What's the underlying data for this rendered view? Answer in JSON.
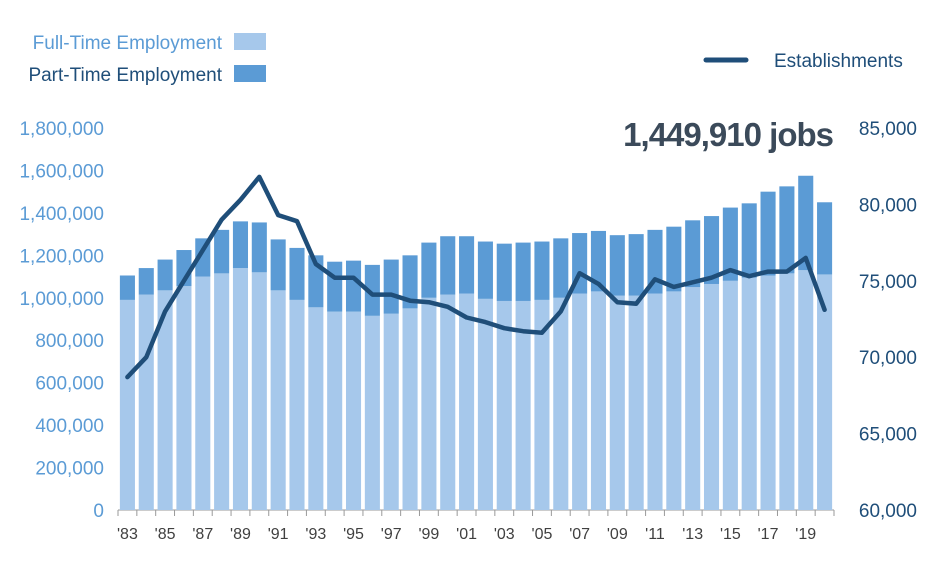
{
  "chart_data": {
    "type": "bar",
    "stacked": true,
    "title": "",
    "annotation": "1,449,910 jobs",
    "x_tick_labels": [
      "'83",
      "'85",
      "'87",
      "'89",
      "'91",
      "'93",
      "'95",
      "'97",
      "'99",
      "'01",
      "'03",
      "'05",
      "'07",
      "'09",
      "'11",
      "'13",
      "'15",
      "'17",
      "'19"
    ],
    "categories": [
      "1983",
      "1984",
      "1985",
      "1986",
      "1987",
      "1988",
      "1989",
      "1990",
      "1991",
      "1992",
      "1993",
      "1994",
      "1995",
      "1996",
      "1997",
      "1998",
      "1999",
      "2000",
      "2001",
      "2002",
      "2003",
      "2004",
      "2005",
      "2006",
      "2007",
      "2008",
      "2009",
      "2010",
      "2011",
      "2012",
      "2013",
      "2014",
      "2015",
      "2016",
      "2017",
      "2018",
      "2019",
      "2020"
    ],
    "y_left": {
      "min": 0,
      "max": 1800000,
      "ticks": [
        "0",
        "200,000",
        "400,000",
        "600,000",
        "800,000",
        "1,000,000",
        "1,200,000",
        "1,400,000",
        "1,600,000",
        "1,800,000"
      ]
    },
    "y_right": {
      "min": 60000,
      "max": 85000,
      "ticks": [
        "60,000",
        "65,000",
        "70,000",
        "75,000",
        "80,000",
        "85,000"
      ]
    },
    "legend_bars": {
      "placement": "top-left",
      "items": [
        "Full-Time Employment",
        "Part-Time Employment"
      ]
    },
    "legend_line": {
      "placement": "top-right",
      "label": "Establishments"
    },
    "series": [
      {
        "name": "Full-Time Employment",
        "axis": "left",
        "color": "#a6c8eb",
        "values": [
          990000,
          1015000,
          1035000,
          1055000,
          1100000,
          1115000,
          1140000,
          1120000,
          1035000,
          990000,
          955000,
          935000,
          935000,
          915000,
          925000,
          950000,
          1000000,
          1015000,
          1020000,
          995000,
          985000,
          985000,
          990000,
          1000000,
          1020000,
          1030000,
          1010000,
          1010000,
          1020000,
          1030000,
          1050000,
          1065000,
          1080000,
          1095000,
          1105000,
          1115000,
          1130000,
          1110000
        ]
      },
      {
        "name": "Part-Time Employment",
        "axis": "left",
        "color": "#5b9bd5",
        "values": [
          115000,
          125000,
          145000,
          170000,
          180000,
          205000,
          220000,
          235000,
          240000,
          245000,
          245000,
          235000,
          240000,
          240000,
          255000,
          250000,
          260000,
          275000,
          270000,
          270000,
          270000,
          275000,
          275000,
          280000,
          285000,
          285000,
          285000,
          290000,
          300000,
          305000,
          315000,
          320000,
          345000,
          350000,
          395000,
          410000,
          445000,
          340000
        ]
      },
      {
        "name": "Establishments",
        "axis": "right",
        "type": "line",
        "color": "#1f4e79",
        "values": [
          68700,
          70000,
          73000,
          75000,
          77000,
          79000,
          80300,
          81800,
          79300,
          78900,
          76100,
          75200,
          75200,
          74100,
          74100,
          73700,
          73600,
          73300,
          72600,
          72300,
          71900,
          71700,
          71600,
          73000,
          75500,
          74800,
          73600,
          73500,
          75100,
          74600,
          74900,
          75200,
          75700,
          75300,
          75600,
          75600,
          76500,
          73100
        ]
      }
    ]
  }
}
